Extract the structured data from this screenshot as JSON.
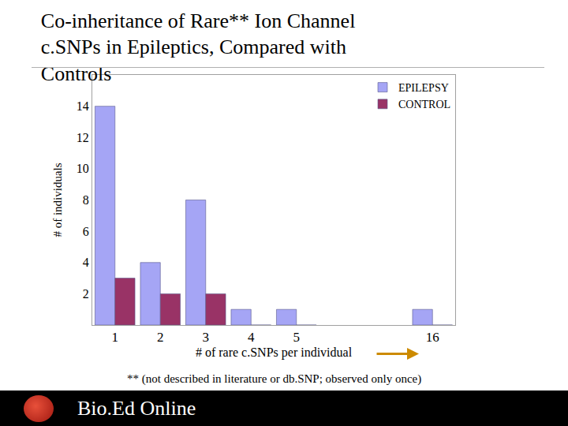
{
  "chart_data": {
    "type": "bar",
    "title": "Co-inheritance of Rare** Ion Channel c.SNPs in Epileptics, Compared with Controls",
    "x_label": "# of rare c.SNPs per individual",
    "y_label": "# of individuals",
    "categories": [
      "1",
      "2",
      "3",
      "4",
      "5",
      null,
      null,
      "16"
    ],
    "series": [
      {
        "name": "EPILEPSY",
        "color": "#a5a5f5",
        "values": [
          14,
          4,
          8,
          1,
          1,
          null,
          null,
          1
        ]
      },
      {
        "name": "CONTROL",
        "color": "#993366",
        "values": [
          3,
          2,
          2,
          0,
          0,
          null,
          null,
          0
        ]
      }
    ],
    "ylim": [
      0,
      16
    ],
    "yticks": [
      2,
      4,
      6,
      8,
      10,
      12,
      14
    ],
    "grid": false,
    "legend": "top right",
    "annotations": [
      "** (not described in literature or db.SNP; observed only once)"
    ]
  },
  "footer": "Bio.Ed Online"
}
